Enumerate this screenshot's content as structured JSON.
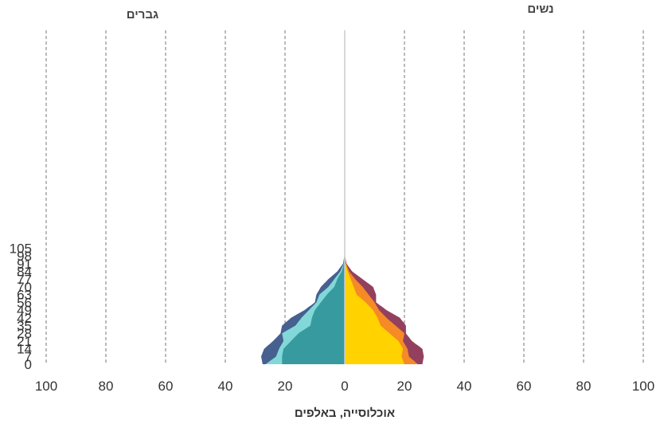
{
  "chart_data": {
    "type": "bar",
    "subtype": "population-pyramid",
    "xlabel": "אוכלוסייה, באלפים",
    "left_label": "גברים",
    "right_label": "נשים",
    "x_ticks": [
      100,
      80,
      60,
      40,
      20,
      0,
      20,
      40,
      60,
      80,
      100
    ],
    "y_ticks": [
      0,
      7,
      14,
      21,
      28,
      35,
      42,
      49,
      56,
      63,
      70,
      77,
      84,
      91,
      98,
      105
    ],
    "xlim": [
      -100,
      100
    ],
    "ylim": [
      0,
      105
    ],
    "grid": "vertical-dashed",
    "colors": {
      "men_inner": "#379a9e",
      "men_middle": "#82d8d8",
      "men_outer": "#46608f",
      "women_inner": "#ffd200",
      "women_middle": "#f58a26",
      "women_outer": "#93405e",
      "grid": "#777777",
      "axis_center": "#cccccc"
    },
    "series": [
      {
        "side": "men",
        "layer": "inner",
        "ages": [
          0,
          7,
          14,
          21,
          28,
          35,
          42,
          49,
          56,
          63,
          70,
          77,
          84,
          91,
          98,
          105
        ],
        "values": [
          21,
          21,
          20.5,
          18,
          15.5,
          11.5,
          11,
          10,
          8,
          6,
          3.5,
          2.5,
          1,
          0.3,
          0.1,
          0
        ]
      },
      {
        "side": "men",
        "layer": "middle",
        "ages": [
          0,
          7,
          14,
          21,
          28,
          35,
          42,
          49,
          56,
          63,
          70,
          77,
          84,
          91,
          98,
          105
        ],
        "values": [
          5.5,
          2,
          1.5,
          2.5,
          5.5,
          5,
          3.5,
          2,
          1.5,
          2.5,
          2,
          1,
          0.5,
          0.1,
          0,
          0
        ]
      },
      {
        "side": "men",
        "layer": "outer",
        "ages": [
          0,
          7,
          14,
          21,
          28,
          35,
          42,
          49,
          56,
          63,
          70,
          77,
          84,
          91,
          98,
          105
        ],
        "values": [
          1,
          5,
          5,
          3.5,
          0.5,
          4.5,
          3.5,
          1.5,
          0.5,
          1,
          2.5,
          2,
          1,
          0.2,
          0,
          0
        ]
      },
      {
        "side": "women",
        "layer": "inner",
        "ages": [
          0,
          7,
          14,
          21,
          28,
          35,
          42,
          49,
          56,
          63,
          70,
          77,
          84,
          91,
          98,
          105
        ],
        "values": [
          20,
          19,
          19.5,
          18,
          15,
          12,
          11,
          9.5,
          7,
          4,
          3,
          2,
          1,
          0.3,
          0.1,
          0
        ]
      },
      {
        "side": "women",
        "layer": "middle",
        "ages": [
          0,
          7,
          14,
          21,
          28,
          35,
          42,
          49,
          56,
          63,
          70,
          77,
          84,
          91,
          98,
          105
        ],
        "values": [
          4.5,
          2.5,
          1.5,
          1.5,
          5,
          5,
          3,
          2,
          3,
          4,
          3,
          1.5,
          0.5,
          0.1,
          0,
          0
        ]
      },
      {
        "side": "women",
        "layer": "outer",
        "ages": [
          0,
          7,
          14,
          21,
          28,
          35,
          42,
          49,
          56,
          63,
          70,
          77,
          84,
          91,
          98,
          105
        ],
        "values": [
          1.5,
          5,
          5,
          3,
          0.5,
          3.5,
          4.5,
          2.5,
          0.5,
          2.5,
          3.5,
          2.5,
          1,
          0.2,
          0,
          0
        ]
      }
    ]
  }
}
